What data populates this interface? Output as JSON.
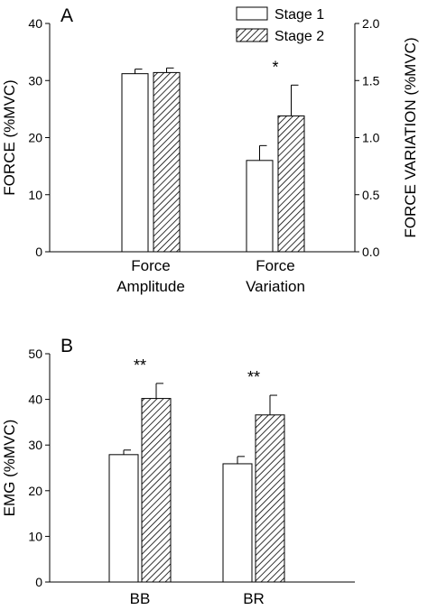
{
  "colors": {
    "stage1_fill": "#ffffff",
    "axis": "#000000",
    "hatch": "#000000"
  },
  "panels": {
    "a": {
      "letter": "A"
    },
    "b": {
      "letter": "B"
    }
  },
  "chart_data": [
    {
      "type": "bar",
      "panel": "A",
      "categories": [
        "Force\nAmplitude",
        "Force\nVariation"
      ],
      "series": [
        {
          "name": "Stage 1",
          "values": [
            31.2,
            16.0
          ],
          "errors": [
            0.8,
            2.6
          ]
        },
        {
          "name": "Stage 2",
          "values": [
            31.4,
            23.8
          ],
          "errors": [
            0.8,
            5.4
          ]
        }
      ],
      "ylabel": "FORCE (%MVC)",
      "ylim": [
        0,
        40
      ],
      "yticks": [
        "0",
        "10",
        "20",
        "30",
        "40"
      ],
      "y2label": "FORCE VARIATION (%MVC)",
      "y2lim": [
        0,
        2.0
      ],
      "y2ticks": [
        "0.0",
        "0.5",
        "1.0",
        "1.5",
        "2.0"
      ],
      "annotations": [
        {
          "category": "Force\nVariation",
          "text": "*"
        }
      ],
      "legend": "top-right",
      "grid": false
    },
    {
      "type": "bar",
      "panel": "B",
      "categories": [
        "BB",
        "BR"
      ],
      "series": [
        {
          "name": "Stage 1",
          "values": [
            27.9,
            25.9
          ],
          "errors": [
            1.0,
            1.6
          ]
        },
        {
          "name": "Stage 2",
          "values": [
            40.2,
            36.6
          ],
          "errors": [
            3.3,
            4.3
          ]
        }
      ],
      "ylabel": "EMG (%MVC)",
      "ylim": [
        0,
        50
      ],
      "yticks": [
        "0",
        "10",
        "20",
        "30",
        "40",
        "50"
      ],
      "annotations": [
        {
          "category": "BB",
          "text": "**"
        },
        {
          "category": "BR",
          "text": "**"
        }
      ],
      "legend": "none",
      "grid": false
    }
  ]
}
